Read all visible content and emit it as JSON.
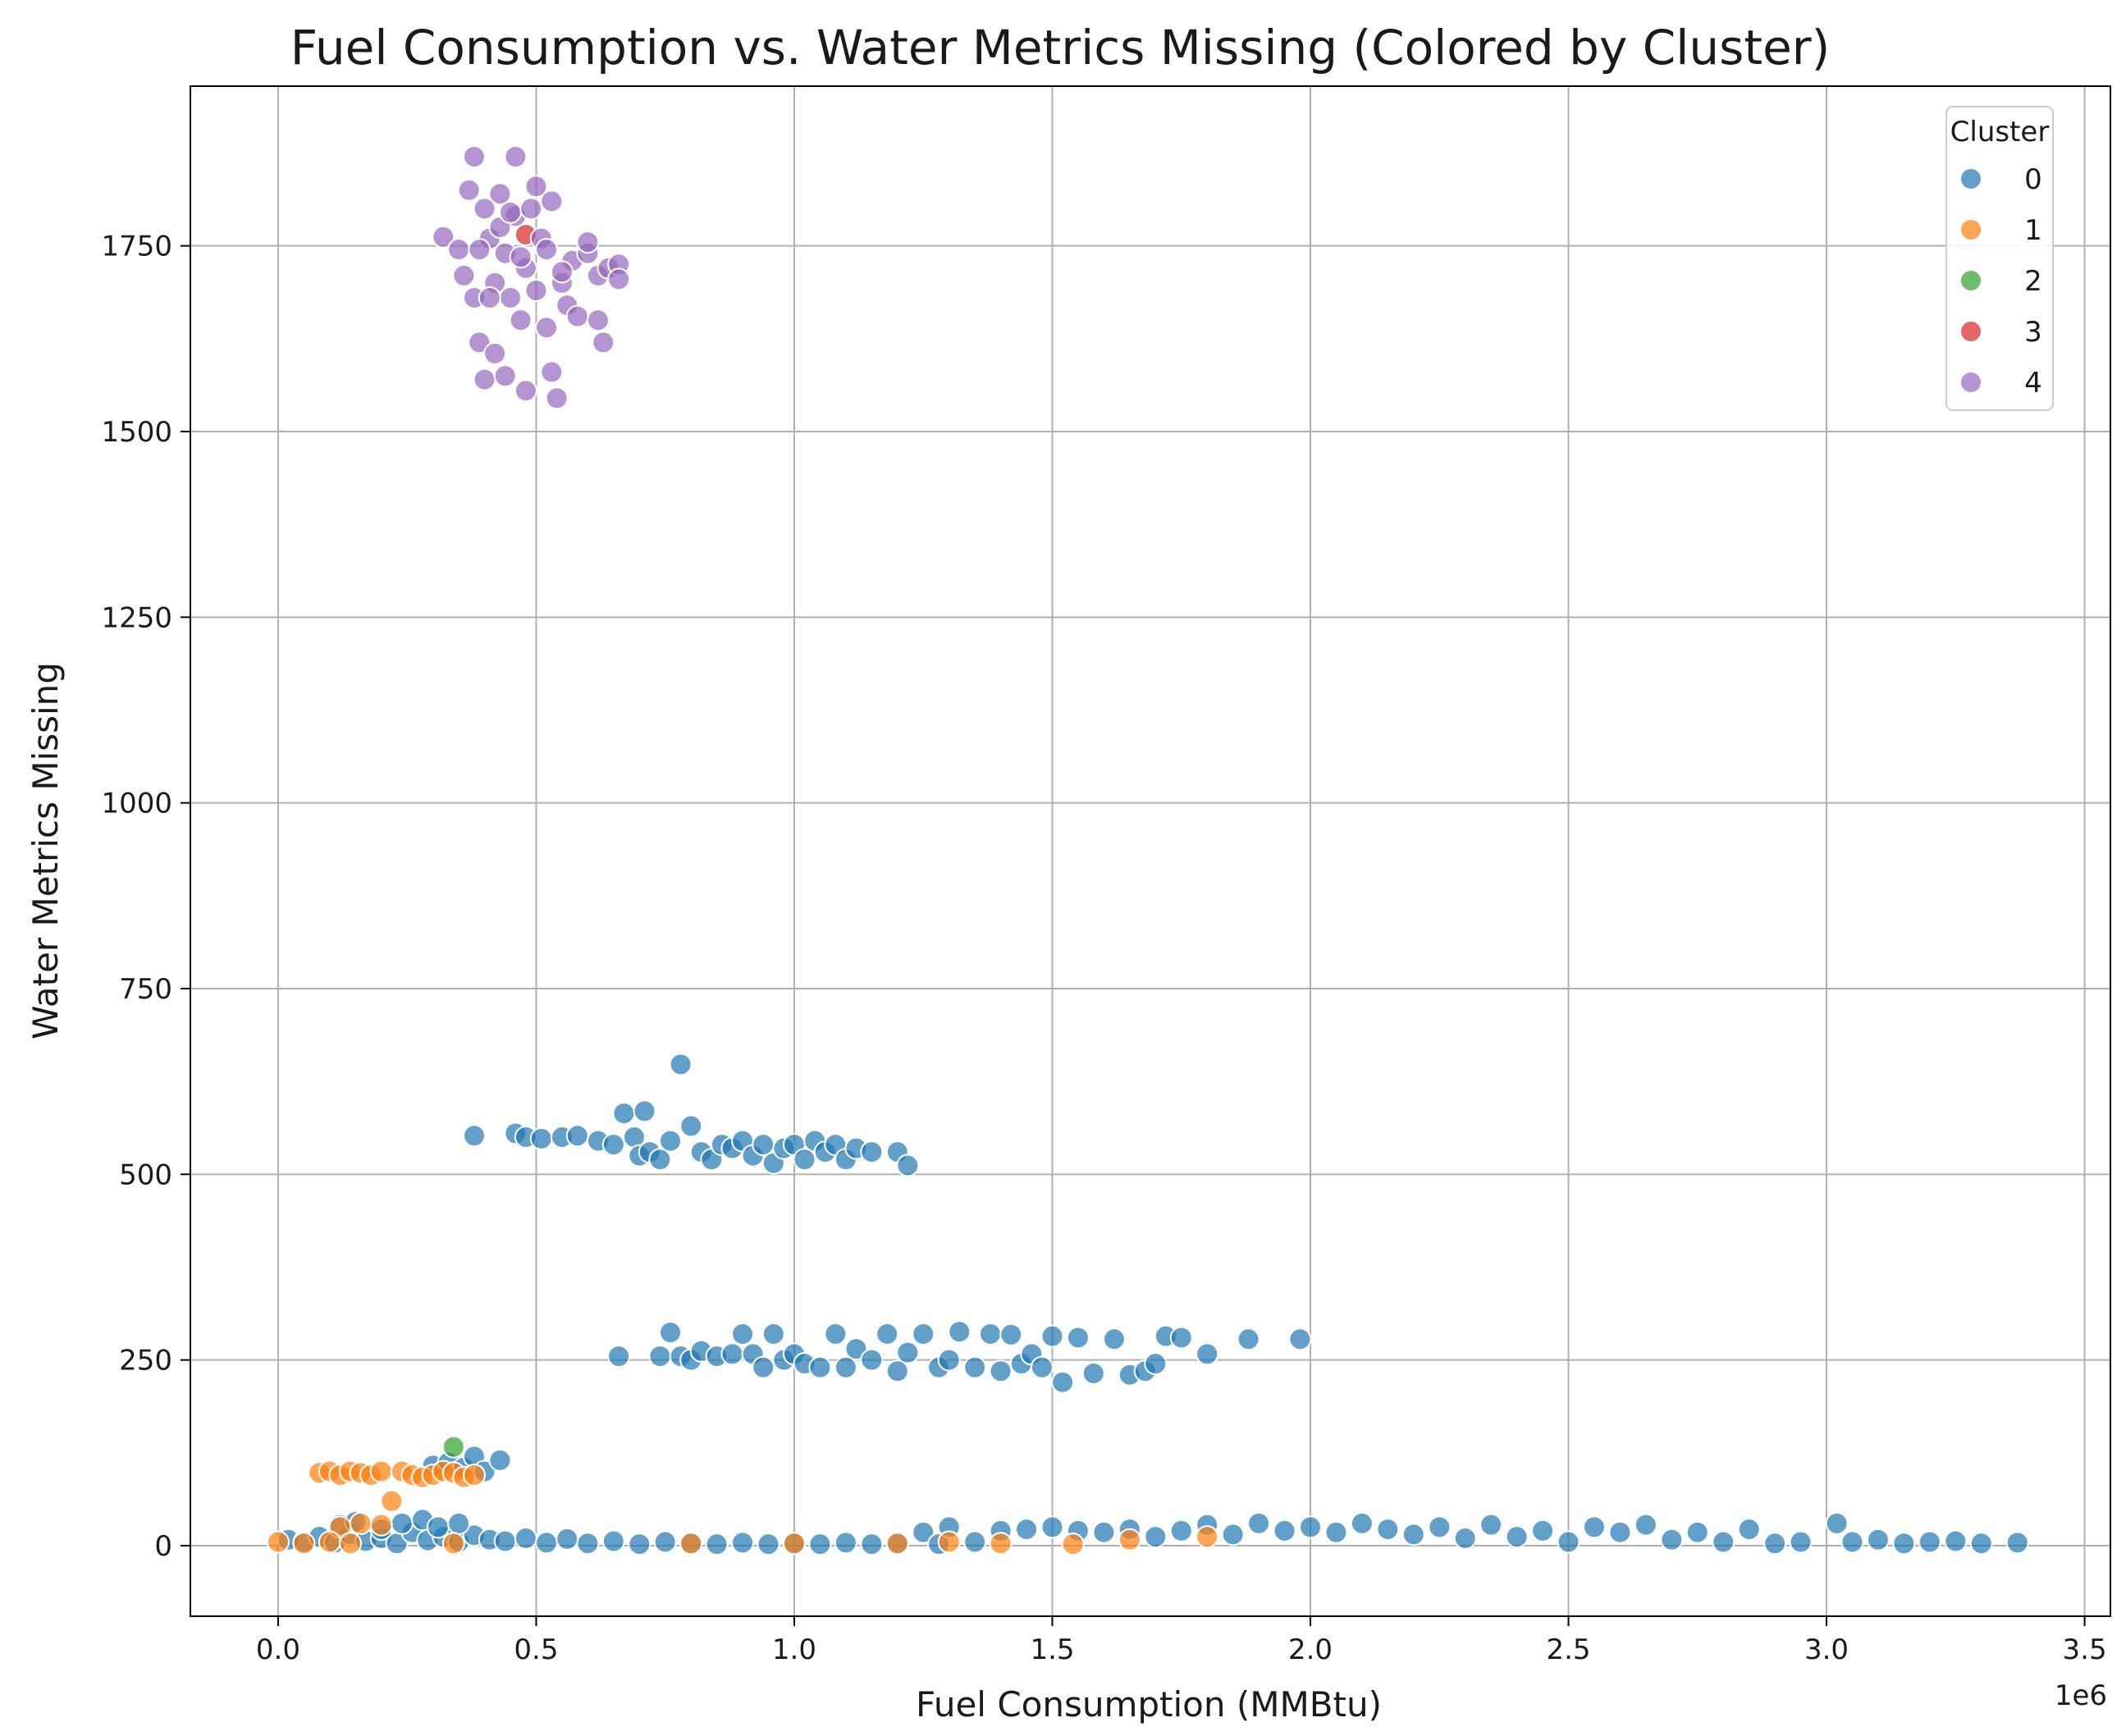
{
  "chart_data": {
    "type": "scatter",
    "title": "Fuel Consumption vs. Water Metrics Missing (Colored by Cluster)",
    "xlabel": "Fuel Consumption (MMBtu)",
    "ylabel": "Water Metrics Missing",
    "x_offset_label": "1e6",
    "x_scale": 1000000,
    "xlim": [
      -170000,
      3550000
    ],
    "ylim": [
      -95,
      1965
    ],
    "x_ticks": [
      0,
      0.5,
      1.0,
      1.5,
      2.0,
      2.5,
      3.0,
      3.5
    ],
    "x_tick_labels": [
      "0.0",
      "0.5",
      "1.0",
      "1.5",
      "2.0",
      "2.5",
      "3.0",
      "3.5"
    ],
    "y_ticks": [
      0,
      250,
      500,
      750,
      1000,
      1250,
      1500,
      1750
    ],
    "y_tick_labels": [
      "0",
      "250",
      "500",
      "750",
      "1000",
      "1250",
      "1500",
      "1750"
    ],
    "grid": true,
    "legend": {
      "title": "Cluster",
      "position": "top-right"
    },
    "series": [
      {
        "name": "0",
        "color": "#1f77b4",
        "points": [
          [
            0.02,
            8
          ],
          [
            0.05,
            5
          ],
          [
            0.08,
            12
          ],
          [
            0.11,
            4
          ],
          [
            0.14,
            15
          ],
          [
            0.17,
            6
          ],
          [
            0.2,
            10
          ],
          [
            0.23,
            3
          ],
          [
            0.26,
            18
          ],
          [
            0.29,
            7
          ],
          [
            0.32,
            12
          ],
          [
            0.35,
            5
          ],
          [
            0.38,
            14
          ],
          [
            0.41,
            8
          ],
          [
            0.44,
            6
          ],
          [
            0.48,
            10
          ],
          [
            0.52,
            4
          ],
          [
            0.56,
            9
          ],
          [
            0.6,
            3
          ],
          [
            0.65,
            6
          ],
          [
            0.7,
            2
          ],
          [
            0.75,
            5
          ],
          [
            0.8,
            3
          ],
          [
            0.85,
            2
          ],
          [
            0.9,
            4
          ],
          [
            0.95,
            2
          ],
          [
            1.0,
            3
          ],
          [
            1.05,
            2
          ],
          [
            1.1,
            4
          ],
          [
            1.15,
            2
          ],
          [
            1.2,
            3
          ],
          [
            1.25,
            18
          ],
          [
            1.28,
            2
          ],
          [
            1.3,
            25
          ],
          [
            1.35,
            5
          ],
          [
            1.4,
            20
          ],
          [
            1.45,
            22
          ],
          [
            1.5,
            25
          ],
          [
            1.55,
            20
          ],
          [
            1.6,
            18
          ],
          [
            1.65,
            22
          ],
          [
            1.7,
            12
          ],
          [
            1.75,
            20
          ],
          [
            1.8,
            28
          ],
          [
            1.85,
            15
          ],
          [
            1.9,
            30
          ],
          [
            1.95,
            20
          ],
          [
            2.0,
            25
          ],
          [
            2.05,
            18
          ],
          [
            2.1,
            30
          ],
          [
            2.15,
            22
          ],
          [
            2.2,
            15
          ],
          [
            2.25,
            25
          ],
          [
            2.3,
            10
          ],
          [
            2.35,
            28
          ],
          [
            2.4,
            12
          ],
          [
            2.45,
            20
          ],
          [
            2.5,
            5
          ],
          [
            2.55,
            25
          ],
          [
            2.6,
            18
          ],
          [
            2.65,
            28
          ],
          [
            2.7,
            8
          ],
          [
            2.75,
            18
          ],
          [
            2.8,
            5
          ],
          [
            2.85,
            22
          ],
          [
            2.9,
            3
          ],
          [
            2.95,
            5
          ],
          [
            3.02,
            30
          ],
          [
            3.05,
            5
          ],
          [
            3.1,
            8
          ],
          [
            3.15,
            3
          ],
          [
            3.2,
            5
          ],
          [
            3.25,
            6
          ],
          [
            3.3,
            3
          ],
          [
            3.37,
            4
          ],
          [
            0.12,
            28
          ],
          [
            0.15,
            32
          ],
          [
            0.2,
            22
          ],
          [
            0.24,
            30
          ],
          [
            0.28,
            35
          ],
          [
            0.31,
            25
          ],
          [
            0.35,
            30
          ],
          [
            0.3,
            108
          ],
          [
            0.33,
            112
          ],
          [
            0.36,
            105
          ],
          [
            0.38,
            120
          ],
          [
            0.4,
            100
          ],
          [
            0.43,
            115
          ],
          [
            0.38,
            552
          ],
          [
            0.46,
            555
          ],
          [
            0.48,
            550
          ],
          [
            0.51,
            548
          ],
          [
            0.55,
            550
          ],
          [
            0.58,
            552
          ],
          [
            0.62,
            545
          ],
          [
            0.65,
            540
          ],
          [
            0.67,
            582
          ],
          [
            0.69,
            550
          ],
          [
            0.7,
            525
          ],
          [
            0.71,
            585
          ],
          [
            0.72,
            530
          ],
          [
            0.74,
            520
          ],
          [
            0.76,
            545
          ],
          [
            0.78,
            648
          ],
          [
            0.8,
            565
          ],
          [
            0.82,
            530
          ],
          [
            0.84,
            520
          ],
          [
            0.86,
            540
          ],
          [
            0.88,
            535
          ],
          [
            0.9,
            545
          ],
          [
            0.92,
            525
          ],
          [
            0.94,
            540
          ],
          [
            0.96,
            515
          ],
          [
            0.98,
            535
          ],
          [
            1.0,
            540
          ],
          [
            1.02,
            520
          ],
          [
            1.04,
            545
          ],
          [
            1.06,
            530
          ],
          [
            1.08,
            540
          ],
          [
            1.1,
            520
          ],
          [
            1.12,
            535
          ],
          [
            1.15,
            530
          ],
          [
            1.2,
            530
          ],
          [
            1.22,
            512
          ],
          [
            0.66,
            255
          ],
          [
            0.74,
            255
          ],
          [
            0.76,
            287
          ],
          [
            0.78,
            255
          ],
          [
            0.8,
            250
          ],
          [
            0.82,
            262
          ],
          [
            0.85,
            255
          ],
          [
            0.88,
            258
          ],
          [
            0.9,
            285
          ],
          [
            0.92,
            258
          ],
          [
            0.94,
            240
          ],
          [
            0.96,
            285
          ],
          [
            0.98,
            250
          ],
          [
            1.0,
            258
          ],
          [
            1.02,
            245
          ],
          [
            1.05,
            240
          ],
          [
            1.08,
            285
          ],
          [
            1.1,
            240
          ],
          [
            1.12,
            265
          ],
          [
            1.15,
            250
          ],
          [
            1.18,
            285
          ],
          [
            1.2,
            235
          ],
          [
            1.22,
            260
          ],
          [
            1.25,
            285
          ],
          [
            1.28,
            240
          ],
          [
            1.3,
            250
          ],
          [
            1.32,
            288
          ],
          [
            1.35,
            240
          ],
          [
            1.38,
            285
          ],
          [
            1.4,
            235
          ],
          [
            1.42,
            284
          ],
          [
            1.44,
            245
          ],
          [
            1.46,
            258
          ],
          [
            1.48,
            240
          ],
          [
            1.5,
            282
          ],
          [
            1.52,
            220
          ],
          [
            1.55,
            280
          ],
          [
            1.58,
            232
          ],
          [
            1.62,
            278
          ],
          [
            1.65,
            230
          ],
          [
            1.68,
            235
          ],
          [
            1.7,
            245
          ],
          [
            1.72,
            282
          ],
          [
            1.75,
            280
          ],
          [
            1.8,
            258
          ],
          [
            1.88,
            278
          ],
          [
            1.98,
            278
          ]
        ]
      },
      {
        "name": "1",
        "color": "#ff7f0e",
        "points": [
          [
            0.0,
            5
          ],
          [
            0.05,
            3
          ],
          [
            0.08,
            98
          ],
          [
            0.1,
            100
          ],
          [
            0.12,
            95
          ],
          [
            0.14,
            100
          ],
          [
            0.16,
            98
          ],
          [
            0.18,
            95
          ],
          [
            0.2,
            100
          ],
          [
            0.22,
            60
          ],
          [
            0.24,
            100
          ],
          [
            0.26,
            95
          ],
          [
            0.28,
            92
          ],
          [
            0.3,
            95
          ],
          [
            0.32,
            100
          ],
          [
            0.34,
            98
          ],
          [
            0.36,
            92
          ],
          [
            0.38,
            95
          ],
          [
            0.12,
            25
          ],
          [
            0.16,
            30
          ],
          [
            0.2,
            28
          ],
          [
            0.1,
            5
          ],
          [
            0.14,
            3
          ],
          [
            0.34,
            3
          ],
          [
            0.8,
            3
          ],
          [
            1.0,
            3
          ],
          [
            1.2,
            3
          ],
          [
            1.3,
            5
          ],
          [
            1.4,
            3
          ],
          [
            1.54,
            2
          ],
          [
            1.65,
            8
          ],
          [
            1.8,
            12
          ]
        ]
      },
      {
        "name": "2",
        "color": "#2ca02c",
        "points": [
          [
            0.34,
            133
          ]
        ]
      },
      {
        "name": "3",
        "color": "#d62728",
        "points": [
          [
            0.48,
            1765
          ]
        ]
      },
      {
        "name": "4",
        "color": "#9467bd",
        "points": [
          [
            0.32,
            1762
          ],
          [
            0.35,
            1745
          ],
          [
            0.36,
            1710
          ],
          [
            0.37,
            1825
          ],
          [
            0.38,
            1870
          ],
          [
            0.38,
            1680
          ],
          [
            0.39,
            1620
          ],
          [
            0.4,
            1570
          ],
          [
            0.4,
            1800
          ],
          [
            0.41,
            1760
          ],
          [
            0.42,
            1700
          ],
          [
            0.42,
            1605
          ],
          [
            0.43,
            1820
          ],
          [
            0.44,
            1740
          ],
          [
            0.44,
            1575
          ],
          [
            0.45,
            1680
          ],
          [
            0.46,
            1870
          ],
          [
            0.46,
            1790
          ],
          [
            0.47,
            1650
          ],
          [
            0.48,
            1555
          ],
          [
            0.48,
            1720
          ],
          [
            0.5,
            1830
          ],
          [
            0.5,
            1690
          ],
          [
            0.51,
            1760
          ],
          [
            0.52,
            1640
          ],
          [
            0.53,
            1810
          ],
          [
            0.53,
            1580
          ],
          [
            0.54,
            1545
          ],
          [
            0.55,
            1700
          ],
          [
            0.56,
            1670
          ],
          [
            0.57,
            1730
          ],
          [
            0.58,
            1655
          ],
          [
            0.6,
            1740
          ],
          [
            0.62,
            1710
          ],
          [
            0.63,
            1620
          ],
          [
            0.64,
            1720
          ],
          [
            0.66,
            1725
          ],
          [
            0.66,
            1705
          ],
          [
            0.39,
            1745
          ],
          [
            0.41,
            1680
          ],
          [
            0.43,
            1775
          ],
          [
            0.45,
            1795
          ],
          [
            0.47,
            1735
          ],
          [
            0.49,
            1800
          ],
          [
            0.52,
            1745
          ],
          [
            0.55,
            1715
          ],
          [
            0.6,
            1755
          ],
          [
            0.62,
            1650
          ]
        ]
      }
    ]
  }
}
